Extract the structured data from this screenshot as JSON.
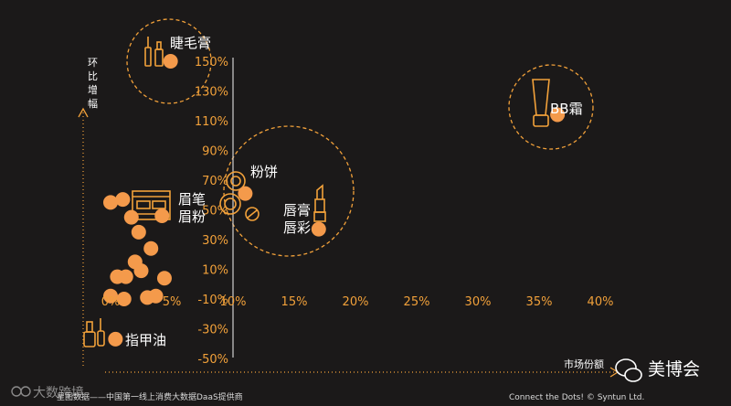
{
  "chart_data": {
    "type": "scatter",
    "xlabel": "市场份额",
    "ylabel": "环比增幅",
    "xlim": [
      -0.01,
      0.4
    ],
    "ylim": [
      -0.5,
      1.5
    ],
    "x_ticks": [
      "0%",
      "5%",
      "10%",
      "15%",
      "20%",
      "25%",
      "30%",
      "35%",
      "40%"
    ],
    "y_ticks": [
      "150%",
      "130%",
      "110%",
      "90%",
      "70%",
      "50%",
      "30%",
      "10%",
      "-10%",
      "-30%",
      "-50%"
    ],
    "labeled_points": [
      {
        "label": "睫毛膏",
        "x": 0.049,
        "y": 1.5
      },
      {
        "label": "BB霜",
        "x": 0.365,
        "y": 1.14
      },
      {
        "label": "粉饼",
        "x": 0.11,
        "y": 0.61
      },
      {
        "label": "唇膏\n唇彩",
        "x": 0.17,
        "y": 0.37
      },
      {
        "label": "眉笔\n眉粉",
        "x": 0.042,
        "y": 0.46
      },
      {
        "label": "指甲油",
        "x": 0.004,
        "y": -0.37
      }
    ],
    "other_points": [
      {
        "x": 0.0,
        "y": 0.55
      },
      {
        "x": 0.01,
        "y": 0.57
      },
      {
        "x": 0.017,
        "y": 0.45
      },
      {
        "x": 0.023,
        "y": 0.35
      },
      {
        "x": 0.033,
        "y": 0.24
      },
      {
        "x": 0.02,
        "y": 0.15
      },
      {
        "x": 0.025,
        "y": 0.09
      },
      {
        "x": 0.0055,
        "y": 0.05
      },
      {
        "x": 0.0125,
        "y": 0.05
      },
      {
        "x": 0.044,
        "y": 0.04
      },
      {
        "x": 0.011,
        "y": -0.1
      },
      {
        "x": 0.03,
        "y": -0.09
      },
      {
        "x": 0.037,
        "y": -0.08
      },
      {
        "x": 0.0,
        "y": -0.08
      }
    ],
    "clusters": [
      {
        "name": "lashes",
        "cx": 0.06,
        "cy": 1.5,
        "r": 0.35
      },
      {
        "name": "bb",
        "cx": 0.36,
        "cy": 1.21,
        "r": 0.43
      },
      {
        "name": "mid",
        "cx": 0.15,
        "cy": 0.56,
        "r": 1.05
      }
    ],
    "grid": false,
    "marker_color": "#f49a4b",
    "axis_color": "#f2a13a"
  },
  "footer": {
    "source_left": "星图数据——中国第一线上消费大数据DaaS提供商",
    "source_right": "Connect the Dots!  © Syntun Ltd."
  },
  "watermarks": {
    "brand": "美博会",
    "top_left_mark": "大数跨境"
  }
}
